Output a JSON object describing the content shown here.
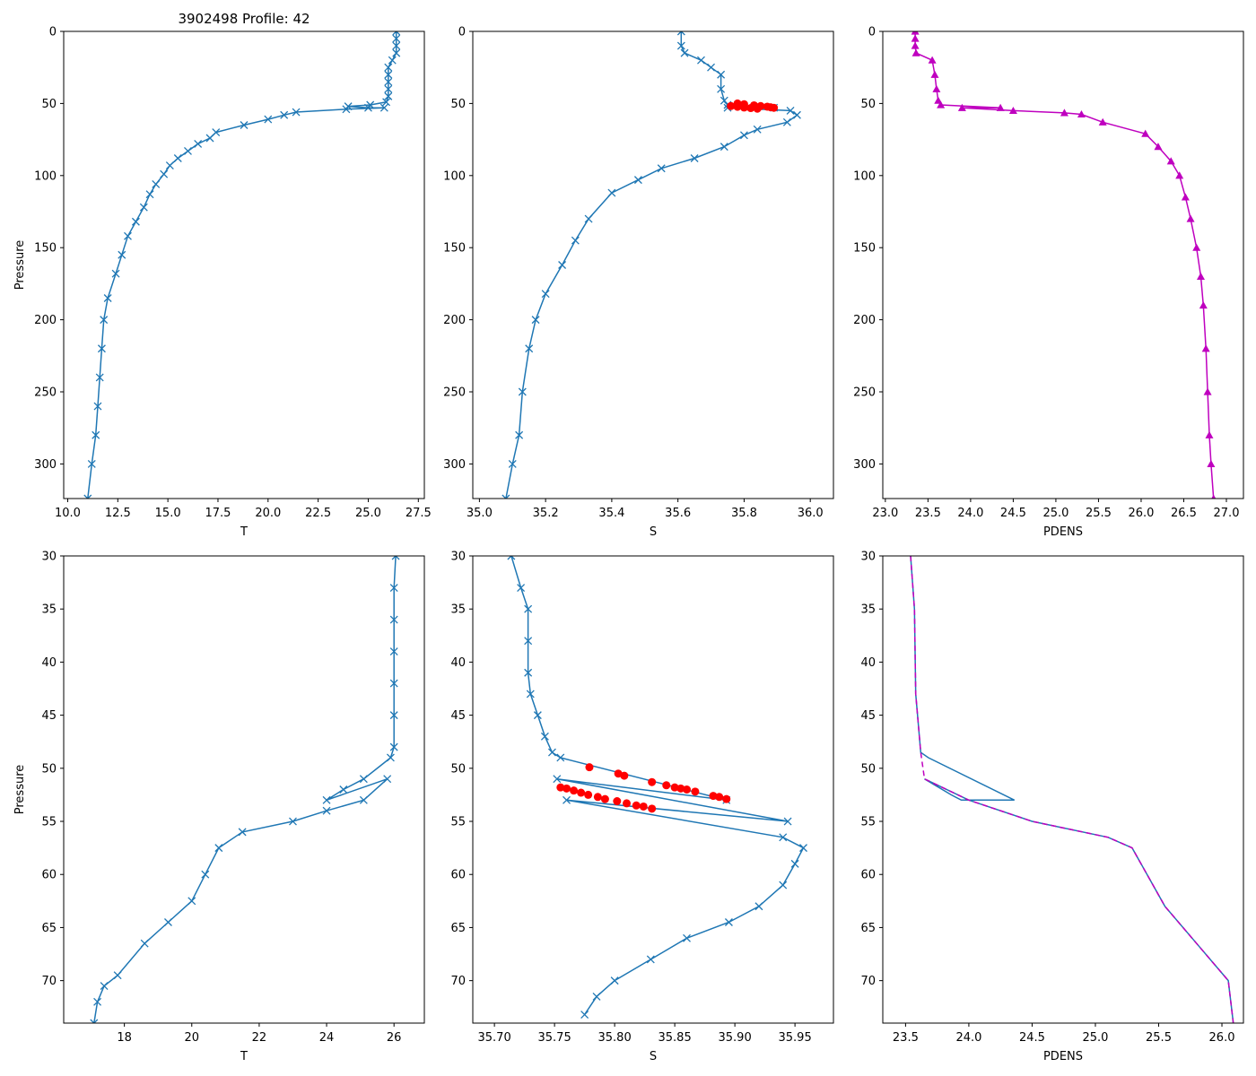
{
  "figure_title": "3902498 Profile: 42",
  "colors": {
    "blue": "#1f77b4",
    "red": "#ff0000",
    "magenta": "#bf00bf",
    "axis": "#000000"
  },
  "chart_data": [
    {
      "id": "t-full",
      "type": "line",
      "xlabel": "T",
      "ylabel": "Pressure",
      "title": "3902498 Profile: 42",
      "xlim": [
        9.8,
        27.8
      ],
      "ylim": [
        324,
        0
      ],
      "marker": "x",
      "color": "blue",
      "xticks": [
        "10.0",
        "12.5",
        "15.0",
        "17.5",
        "20.0",
        "22.5",
        "25.0",
        "27.5"
      ],
      "yticks": [
        "0",
        "50",
        "100",
        "150",
        "200",
        "250",
        "300"
      ],
      "series": [
        {
          "name": "T",
          "points": [
            [
              26.4,
              0
            ],
            [
              26.4,
              5
            ],
            [
              26.4,
              10
            ],
            [
              26.4,
              15
            ],
            [
              26.2,
              20
            ],
            [
              26.0,
              25
            ],
            [
              26.0,
              30
            ],
            [
              26.0,
              35
            ],
            [
              26.0,
              40
            ],
            [
              26.0,
              45
            ],
            [
              25.9,
              49
            ],
            [
              25.1,
              51
            ],
            [
              24.0,
              52
            ],
            [
              25.0,
              53
            ],
            [
              25.8,
              53
            ],
            [
              23.9,
              54
            ],
            [
              21.4,
              56
            ],
            [
              20.8,
              58
            ],
            [
              20.0,
              61
            ],
            [
              18.8,
              65
            ],
            [
              17.4,
              70
            ],
            [
              17.1,
              74
            ],
            [
              16.5,
              78
            ],
            [
              16.0,
              83
            ],
            [
              15.5,
              88
            ],
            [
              15.1,
              93
            ],
            [
              14.8,
              99
            ],
            [
              14.4,
              106
            ],
            [
              14.1,
              113
            ],
            [
              13.8,
              122
            ],
            [
              13.4,
              132
            ],
            [
              13.0,
              142
            ],
            [
              12.7,
              155
            ],
            [
              12.4,
              168
            ],
            [
              12.0,
              185
            ],
            [
              11.8,
              200
            ],
            [
              11.7,
              220
            ],
            [
              11.6,
              240
            ],
            [
              11.5,
              260
            ],
            [
              11.4,
              280
            ],
            [
              11.2,
              300
            ],
            [
              11.0,
              324
            ]
          ]
        }
      ]
    },
    {
      "id": "s-full",
      "type": "line",
      "xlabel": "S",
      "ylabel": "",
      "title": "",
      "xlim": [
        34.98,
        36.07
      ],
      "ylim": [
        324,
        0
      ],
      "marker": "x",
      "color": "blue",
      "xticks": [
        "35.0",
        "35.2",
        "35.4",
        "35.6",
        "35.8",
        "36.0"
      ],
      "yticks": [
        "0",
        "50",
        "100",
        "150",
        "200",
        "250",
        "300"
      ],
      "series": [
        {
          "name": "S",
          "points": [
            [
              35.61,
              0
            ],
            [
              35.61,
              10
            ],
            [
              35.62,
              15
            ],
            [
              35.67,
              20
            ],
            [
              35.7,
              25
            ],
            [
              35.73,
              30
            ],
            [
              35.73,
              40
            ],
            [
              35.74,
              48
            ],
            [
              35.75,
              51
            ],
            [
              35.89,
              53
            ],
            [
              35.75,
              53
            ],
            [
              35.94,
              55
            ],
            [
              35.96,
              58
            ],
            [
              35.93,
              63
            ],
            [
              35.84,
              68
            ],
            [
              35.8,
              72
            ],
            [
              35.74,
              80
            ],
            [
              35.65,
              88
            ],
            [
              35.55,
              95
            ],
            [
              35.48,
              103
            ],
            [
              35.4,
              112
            ],
            [
              35.33,
              130
            ],
            [
              35.29,
              145
            ],
            [
              35.25,
              162
            ],
            [
              35.2,
              182
            ],
            [
              35.17,
              200
            ],
            [
              35.15,
              220
            ],
            [
              35.13,
              250
            ],
            [
              35.12,
              280
            ],
            [
              35.1,
              300
            ],
            [
              35.08,
              324
            ]
          ]
        }
      ],
      "highlight_points": [
        [
          35.78,
          50
        ],
        [
          35.8,
          50.5
        ],
        [
          35.83,
          51.3
        ],
        [
          35.85,
          51.8
        ],
        [
          35.87,
          52.2
        ],
        [
          35.88,
          52.6
        ],
        [
          35.89,
          53
        ],
        [
          35.76,
          51.8
        ],
        [
          35.78,
          52.3
        ],
        [
          35.8,
          52.8
        ],
        [
          35.82,
          53.2
        ],
        [
          35.84,
          53.6
        ]
      ]
    },
    {
      "id": "pdens-full",
      "type": "line",
      "xlabel": "PDENS",
      "ylabel": "",
      "title": "",
      "xlim": [
        22.97,
        27.2
      ],
      "ylim": [
        324,
        0
      ],
      "marker": "triangle",
      "color": "magenta",
      "xticks": [
        "23.0",
        "23.5",
        "24.0",
        "24.5",
        "25.0",
        "25.5",
        "26.0",
        "26.5",
        "27.0"
      ],
      "yticks": [
        "0",
        "50",
        "100",
        "150",
        "200",
        "250",
        "300"
      ],
      "series": [
        {
          "name": "PDENS",
          "points": [
            [
              23.35,
              0
            ],
            [
              23.35,
              5
            ],
            [
              23.35,
              10
            ],
            [
              23.36,
              15
            ],
            [
              23.55,
              20
            ],
            [
              23.58,
              30
            ],
            [
              23.6,
              40
            ],
            [
              23.62,
              48
            ],
            [
              23.65,
              51
            ],
            [
              24.35,
              53
            ],
            [
              23.9,
              53
            ],
            [
              24.5,
              55
            ],
            [
              25.1,
              56.5
            ],
            [
              25.3,
              57.5
            ],
            [
              25.55,
              63
            ],
            [
              26.05,
              71
            ],
            [
              26.2,
              80
            ],
            [
              26.35,
              90
            ],
            [
              26.45,
              100
            ],
            [
              26.52,
              115
            ],
            [
              26.58,
              130
            ],
            [
              26.65,
              150
            ],
            [
              26.7,
              170
            ],
            [
              26.73,
              190
            ],
            [
              26.76,
              220
            ],
            [
              26.78,
              250
            ],
            [
              26.8,
              280
            ],
            [
              26.82,
              300
            ],
            [
              26.85,
              324
            ]
          ]
        }
      ]
    },
    {
      "id": "t-zoom",
      "type": "line",
      "xlabel": "T",
      "ylabel": "Pressure",
      "title": "",
      "xlim": [
        16.2,
        26.9
      ],
      "ylim": [
        74,
        30
      ],
      "marker": "x",
      "color": "blue",
      "xticks": [
        "18",
        "20",
        "22",
        "24",
        "26"
      ],
      "yticks": [
        "30",
        "35",
        "40",
        "45",
        "50",
        "55",
        "60",
        "65",
        "70"
      ],
      "series": [
        {
          "name": "T",
          "points": [
            [
              26.05,
              30
            ],
            [
              26.0,
              33
            ],
            [
              26.0,
              36
            ],
            [
              26.0,
              39
            ],
            [
              26.0,
              42
            ],
            [
              26.0,
              45
            ],
            [
              26.0,
              48
            ],
            [
              25.9,
              49
            ],
            [
              25.1,
              51
            ],
            [
              24.5,
              52
            ],
            [
              24.0,
              53
            ],
            [
              25.8,
              51
            ],
            [
              25.1,
              53
            ],
            [
              24.0,
              54
            ],
            [
              23.0,
              55
            ],
            [
              21.5,
              56
            ],
            [
              20.8,
              57.5
            ],
            [
              20.4,
              60
            ],
            [
              20.0,
              62.5
            ],
            [
              19.3,
              64.5
            ],
            [
              18.6,
              66.5
            ],
            [
              17.8,
              69.5
            ],
            [
              17.4,
              70.5
            ],
            [
              17.2,
              72
            ],
            [
              17.1,
              74
            ]
          ]
        }
      ]
    },
    {
      "id": "s-zoom",
      "type": "line",
      "xlabel": "S",
      "ylabel": "",
      "title": "",
      "xlim": [
        35.682,
        35.982
      ],
      "ylim": [
        74,
        30
      ],
      "marker": "x",
      "color": "blue",
      "xticks": [
        "35.70",
        "35.75",
        "35.80",
        "35.85",
        "35.90",
        "35.95"
      ],
      "yticks": [
        "30",
        "35",
        "40",
        "45",
        "50",
        "55",
        "60",
        "65",
        "70"
      ],
      "series": [
        {
          "name": "S",
          "points": [
            [
              35.714,
              30
            ],
            [
              35.722,
              33
            ],
            [
              35.728,
              35
            ],
            [
              35.728,
              38
            ],
            [
              35.728,
              41
            ],
            [
              35.73,
              43
            ],
            [
              35.736,
              45
            ],
            [
              35.742,
              47
            ],
            [
              35.748,
              48.5
            ],
            [
              35.755,
              49
            ],
            [
              35.893,
              53
            ],
            [
              35.752,
              51
            ],
            [
              35.944,
              55
            ],
            [
              35.76,
              53
            ],
            [
              35.94,
              56.5
            ],
            [
              35.957,
              57.5
            ],
            [
              35.95,
              59
            ],
            [
              35.94,
              61
            ],
            [
              35.92,
              63
            ],
            [
              35.895,
              64.5
            ],
            [
              35.86,
              66
            ],
            [
              35.83,
              68
            ],
            [
              35.8,
              70
            ],
            [
              35.785,
              71.5
            ],
            [
              35.775,
              73.2
            ]
          ]
        }
      ],
      "highlight_points": [
        [
          35.779,
          49.9
        ],
        [
          35.803,
          50.5
        ],
        [
          35.808,
          50.7
        ],
        [
          35.831,
          51.3
        ],
        [
          35.843,
          51.6
        ],
        [
          35.85,
          51.8
        ],
        [
          35.855,
          51.9
        ],
        [
          35.86,
          52.0
        ],
        [
          35.867,
          52.2
        ],
        [
          35.882,
          52.6
        ],
        [
          35.887,
          52.7
        ],
        [
          35.893,
          52.9
        ],
        [
          35.755,
          51.8
        ],
        [
          35.76,
          51.9
        ],
        [
          35.766,
          52.1
        ],
        [
          35.772,
          52.3
        ],
        [
          35.778,
          52.5
        ],
        [
          35.786,
          52.7
        ],
        [
          35.792,
          52.9
        ],
        [
          35.802,
          53.1
        ],
        [
          35.81,
          53.3
        ],
        [
          35.818,
          53.5
        ],
        [
          35.824,
          53.6
        ],
        [
          35.831,
          53.8
        ]
      ]
    },
    {
      "id": "pdens-zoom",
      "type": "line",
      "xlabel": "PDENS",
      "ylabel": "",
      "title": "",
      "xlim": [
        23.32,
        26.17
      ],
      "ylim": [
        74,
        30
      ],
      "marker": "none",
      "color": "blue",
      "overlay_color": "magenta",
      "xticks": [
        "23.5",
        "24.0",
        "24.5",
        "25.0",
        "25.5",
        "26.0"
      ],
      "yticks": [
        "30",
        "35",
        "40",
        "45",
        "50",
        "55",
        "60",
        "65",
        "70"
      ],
      "series": [
        {
          "name": "PDENS",
          "points": [
            [
              23.54,
              30
            ],
            [
              23.57,
              35
            ],
            [
              23.58,
              43
            ],
            [
              23.62,
              48.5
            ],
            [
              23.68,
              49
            ],
            [
              24.36,
              53
            ],
            [
              23.94,
              53
            ],
            [
              23.86,
              52.5
            ],
            [
              23.65,
              51
            ],
            [
              24.0,
              53
            ],
            [
              24.5,
              55
            ],
            [
              25.1,
              56.5
            ],
            [
              25.29,
              57.5
            ],
            [
              25.55,
              63
            ],
            [
              25.8,
              66.5
            ],
            [
              26.05,
              70
            ],
            [
              26.09,
              74
            ]
          ]
        },
        {
          "name": "PDENS-overlay",
          "points": [
            [
              23.54,
              30
            ],
            [
              23.57,
              35
            ],
            [
              23.58,
              43
            ],
            [
              23.62,
              48.5
            ],
            [
              23.65,
              51
            ],
            [
              24.0,
              53
            ],
            [
              24.5,
              55
            ],
            [
              25.1,
              56.5
            ],
            [
              25.29,
              57.5
            ],
            [
              25.55,
              63
            ],
            [
              25.8,
              66.5
            ],
            [
              26.05,
              70
            ],
            [
              26.09,
              74
            ]
          ]
        }
      ]
    }
  ]
}
